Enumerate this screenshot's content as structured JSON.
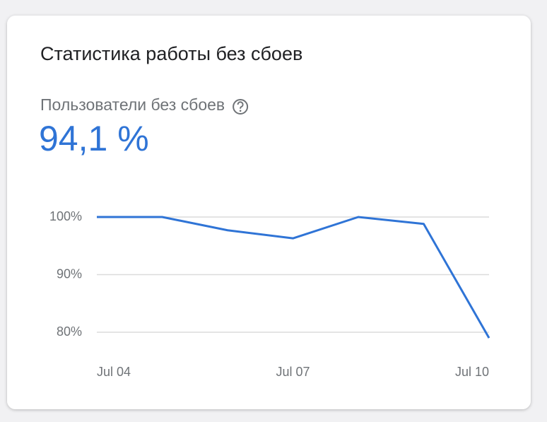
{
  "card": {
    "title": "Статистика работы без сбоев",
    "metric_label": "Пользователи без сбоев",
    "metric_value": "94,1 %"
  },
  "chart_data": {
    "type": "line",
    "categories": [
      "Jul 04",
      null,
      null,
      "Jul 07",
      null,
      null,
      "Jul 10"
    ],
    "series": [
      {
        "name": "Пользователи без сбоев",
        "color": "#2f74d6",
        "values": [
          100,
          100,
          97.7,
          96.3,
          100,
          98.8,
          79
        ]
      }
    ],
    "ylim": [
      78,
      101
    ],
    "yticks": [
      {
        "value": 80,
        "label": "80%"
      },
      {
        "value": 90,
        "label": "90%"
      },
      {
        "value": 100,
        "label": "100%"
      }
    ],
    "grid": true
  }
}
